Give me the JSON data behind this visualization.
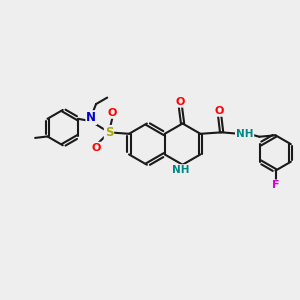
{
  "bg_color": "#eeeeee",
  "bond_color": "#1a1a1a",
  "bond_width": 1.5,
  "dbo": 0.055,
  "atom_colors": {
    "N": "#0000cc",
    "NH": "#008888",
    "O": "#ff0000",
    "S": "#aaaa00",
    "F": "#dd00dd",
    "C": "#1a1a1a"
  },
  "figsize": [
    3.0,
    3.0
  ],
  "dpi": 100
}
